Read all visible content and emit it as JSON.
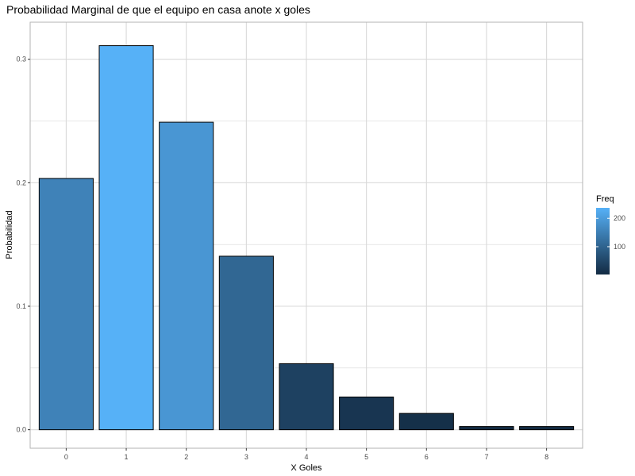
{
  "chart_data": {
    "type": "bar",
    "title": "Probabilidad Marginal de que el equipo en casa anote x goles",
    "xlabel": "X Goles",
    "ylabel": "Probabilidad",
    "categories": [
      "0",
      "1",
      "2",
      "3",
      "4",
      "5",
      "6",
      "7",
      "8"
    ],
    "values": [
      0.2035,
      0.311,
      0.249,
      0.1405,
      0.0535,
      0.0265,
      0.0132,
      0.0026,
      0.0026
    ],
    "freq": [
      155,
      237,
      190,
      107,
      41,
      20,
      10,
      2,
      2
    ],
    "ylim": [
      -0.015,
      0.33
    ],
    "yticks": [
      0.0,
      0.1,
      0.2,
      0.3
    ],
    "ytick_labels": [
      "0.0",
      "0.1",
      "0.2",
      "0.3"
    ],
    "grid": true,
    "legend": {
      "title": "Freq",
      "position": "right",
      "min": 2,
      "max": 237,
      "ticks": [
        100,
        200
      ],
      "tick_labels": [
        "100",
        "200"
      ],
      "color_low": "#132b43",
      "color_high": "#56b1f7"
    },
    "colors": {
      "bar_outline": "#000000",
      "grid": "#d9d9d9",
      "panel_border": "#b3b3b3"
    }
  }
}
